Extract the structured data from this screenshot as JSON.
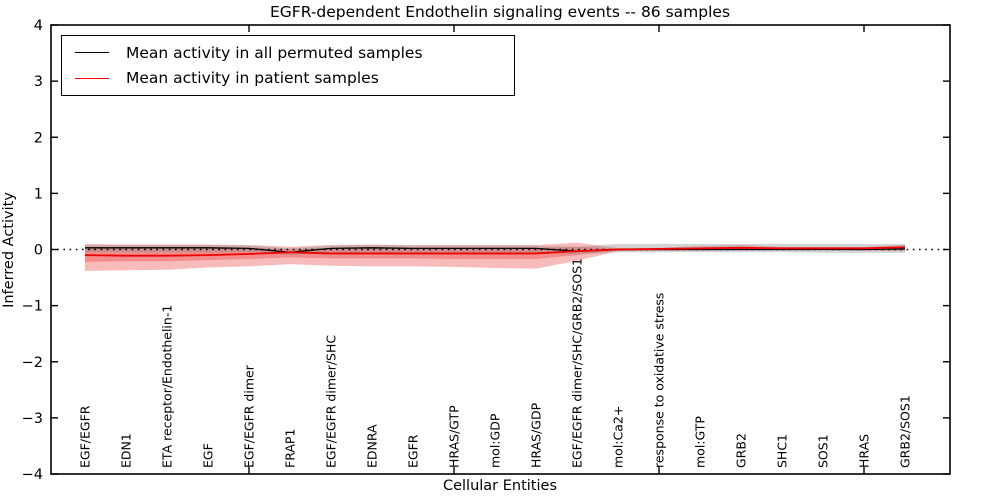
{
  "chart_data": {
    "type": "line",
    "title": "EGFR-dependent Endothelin signaling events -- 86 samples",
    "xlabel": "Cellular Entities",
    "ylabel": "Inferred Activity",
    "samples": 86,
    "ylim": [
      -4,
      4
    ],
    "yticks": [
      4,
      3,
      2,
      1,
      0,
      -1,
      -2,
      -3,
      -4
    ],
    "xtick_positions": [
      5,
      10,
      15,
      20
    ],
    "grid": false,
    "zero_line": {
      "style": "dotted",
      "color": "#000000",
      "y": 0
    },
    "legend_position": "upper-left",
    "legend": {
      "entries": [
        {
          "label": "Mean activity in all permuted samples",
          "color": "#000000"
        },
        {
          "label": "Mean activity in patient samples",
          "color": "#ff0000"
        }
      ]
    },
    "categories": [
      "EGF/EGFR",
      "EDN1",
      "ETA receptor/Endothelin-1",
      "EGF",
      "EGF/EGFR dimer",
      "FRAP1",
      "EGF/EGFR dimer/SHC",
      "EDNRA",
      "EGFR",
      "HRAS/GTP",
      "mol:GDP",
      "HRAS/GDP",
      "EGF/EGFR dimer/SHC/GRB2/SOS1",
      "mol:Ca2+",
      "response to oxidative stress",
      "mol:GTP",
      "GRB2",
      "SHC1",
      "SOS1",
      "HRAS",
      "GRB2/SOS1"
    ],
    "series": [
      {
        "name": "Mean activity in all permuted samples",
        "color": "#000000",
        "values": [
          0.03,
          0.03,
          0.03,
          0.03,
          0.02,
          -0.05,
          0.02,
          0.03,
          0.02,
          0.02,
          0.02,
          0.02,
          -0.03,
          0.0,
          0.0,
          0.0,
          0.0,
          0.0,
          0.0,
          0.0,
          0.01
        ]
      },
      {
        "name": "Mean activity in patient samples",
        "color": "#f00000",
        "values": [
          -0.1,
          -0.11,
          -0.11,
          -0.1,
          -0.08,
          -0.05,
          -0.07,
          -0.07,
          -0.07,
          -0.07,
          -0.07,
          -0.07,
          -0.03,
          0.0,
          0.01,
          0.02,
          0.03,
          0.02,
          0.02,
          0.02,
          0.04
        ]
      }
    ],
    "bands": [
      {
        "name": "patient-outer-band",
        "color": "rgba(233,50,50,0.33)",
        "upper": [
          0.1,
          0.09,
          0.09,
          0.09,
          0.08,
          0.05,
          0.08,
          0.09,
          0.08,
          0.08,
          0.08,
          0.08,
          0.12,
          0.03,
          0.03,
          0.06,
          0.08,
          0.05,
          0.05,
          0.05,
          0.08
        ],
        "lower": [
          -0.38,
          -0.37,
          -0.36,
          -0.32,
          -0.3,
          -0.26,
          -0.29,
          -0.3,
          -0.3,
          -0.31,
          -0.33,
          -0.34,
          -0.2,
          -0.03,
          -0.02,
          -0.02,
          -0.01,
          -0.01,
          -0.01,
          -0.02,
          -0.03
        ]
      },
      {
        "name": "patient-inner-band",
        "color": "rgba(233,50,50,0.33)",
        "upper": [
          0.04,
          0.04,
          0.04,
          0.04,
          0.03,
          0.01,
          0.03,
          0.04,
          0.03,
          0.03,
          0.03,
          0.03,
          0.05,
          0.02,
          0.02,
          0.04,
          0.05,
          0.04,
          0.04,
          0.04,
          0.06
        ],
        "lower": [
          -0.22,
          -0.21,
          -0.21,
          -0.19,
          -0.17,
          -0.14,
          -0.16,
          -0.16,
          -0.16,
          -0.17,
          -0.17,
          -0.17,
          -0.1,
          -0.02,
          -0.01,
          0.0,
          0.01,
          0.01,
          0.01,
          0.0,
          0.01
        ]
      },
      {
        "name": "permuted-band",
        "color": "rgba(140,140,140,0.38)",
        "upper": [
          0.08,
          0.08,
          0.08,
          0.08,
          0.07,
          0.02,
          0.07,
          0.08,
          0.07,
          0.07,
          0.07,
          0.07,
          0.05,
          0.1,
          0.1,
          0.1,
          0.1,
          0.1,
          0.1,
          0.1,
          0.1
        ],
        "lower": [
          -0.05,
          -0.05,
          -0.05,
          -0.05,
          -0.05,
          -0.1,
          -0.05,
          -0.05,
          -0.05,
          -0.05,
          -0.05,
          -0.05,
          -0.08,
          -0.05,
          -0.05,
          -0.05,
          -0.05,
          -0.05,
          -0.06,
          -0.06,
          -0.06
        ]
      }
    ]
  }
}
